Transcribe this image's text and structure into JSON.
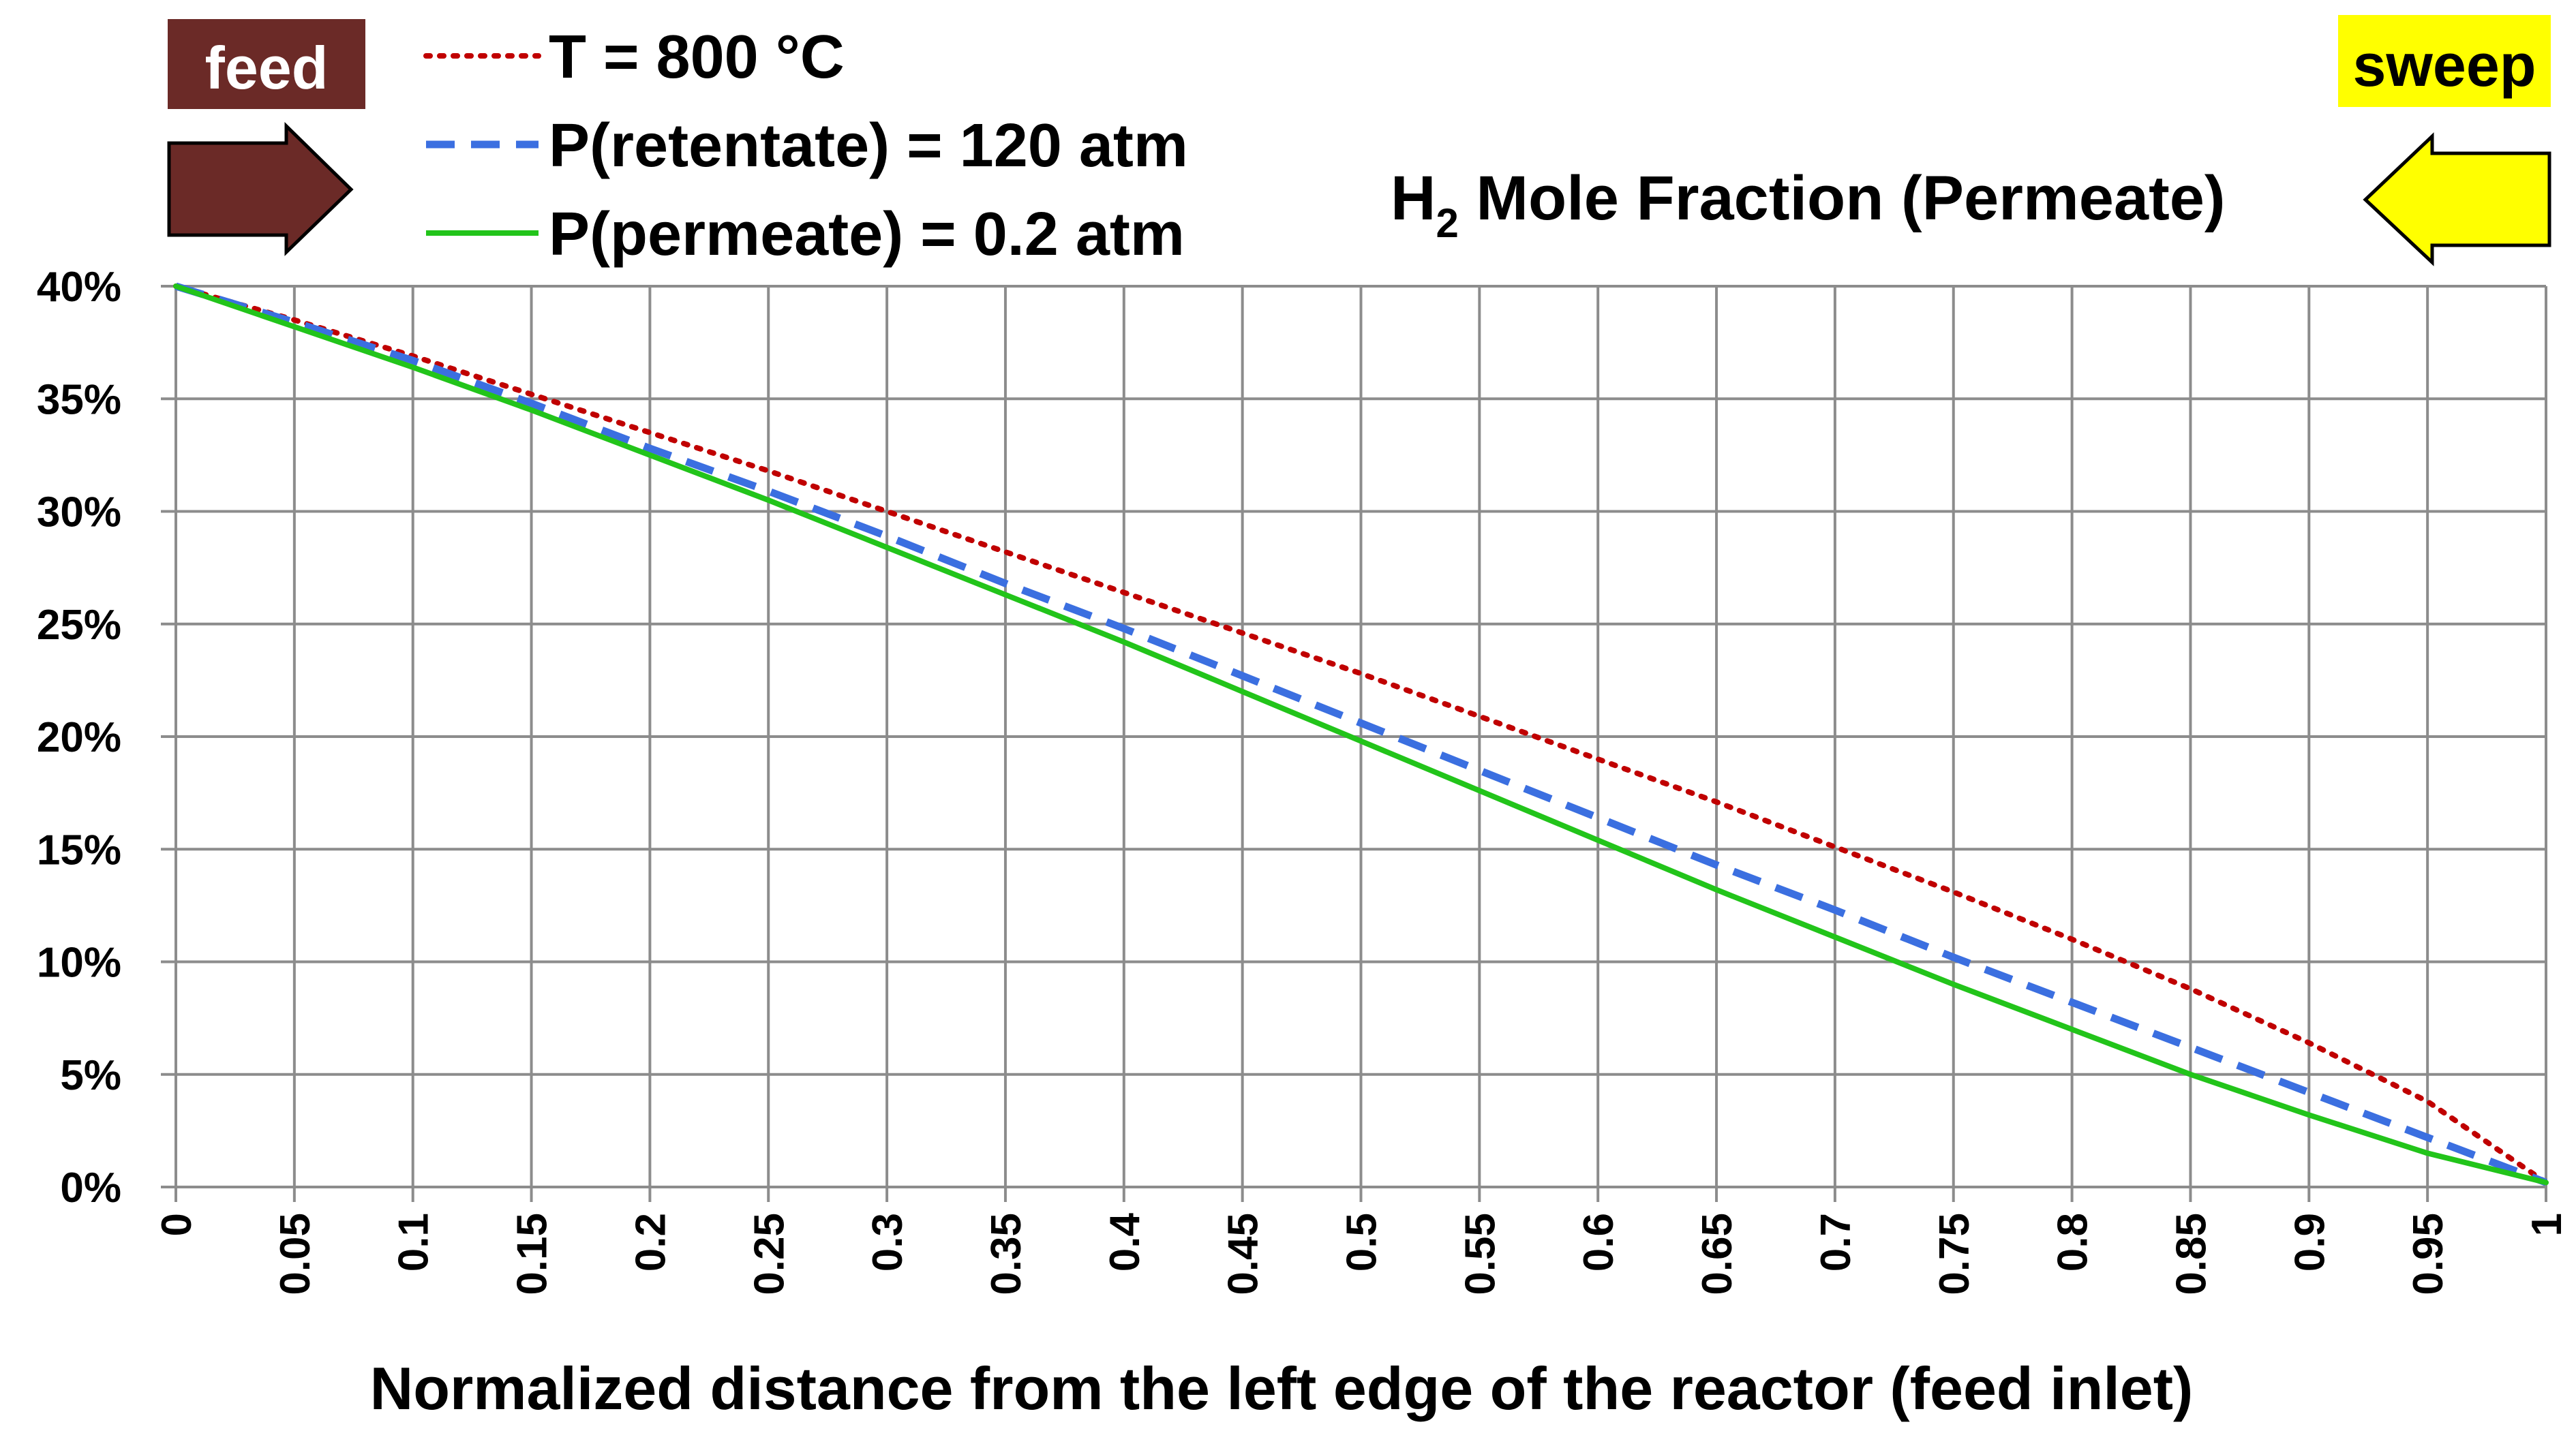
{
  "chart_data": {
    "type": "line",
    "title": "H",
    "title_subscript": "2",
    "title_rest": " Mole Fraction (Permeate)",
    "xlabel": "Normalized distance from the left edge of the reactor (feed inlet)",
    "ylabel": "",
    "xlim": [
      0,
      1
    ],
    "ylim": [
      0,
      0.4
    ],
    "grid": true,
    "legend_position": "top-left",
    "x_ticks": [
      "0",
      "0.05",
      "0.1",
      "0.15",
      "0.2",
      "0.25",
      "0.3",
      "0.35",
      "0.4",
      "0.45",
      "0.5",
      "0.55",
      "0.6",
      "0.65",
      "0.7",
      "0.75",
      "0.8",
      "0.85",
      "0.9",
      "0.95",
      "1"
    ],
    "y_ticks": [
      "0%",
      "5%",
      "10%",
      "15%",
      "20%",
      "25%",
      "30%",
      "35%",
      "40%"
    ],
    "x": [
      0,
      0.05,
      0.1,
      0.15,
      0.2,
      0.25,
      0.3,
      0.35,
      0.4,
      0.45,
      0.5,
      0.55,
      0.6,
      0.65,
      0.7,
      0.75,
      0.8,
      0.85,
      0.9,
      0.95,
      1
    ],
    "series": [
      {
        "name": "T = 800 °C",
        "style": "dotted",
        "color": "#c00000",
        "values": [
          0.4,
          0.385,
          0.369,
          0.352,
          0.335,
          0.318,
          0.3,
          0.282,
          0.264,
          0.246,
          0.228,
          0.209,
          0.19,
          0.171,
          0.151,
          0.131,
          0.11,
          0.088,
          0.064,
          0.038,
          0.002
        ]
      },
      {
        "name": "P(retentate) = 120 atm",
        "style": "dashed",
        "color": "#3b6fe0",
        "values": [
          0.4,
          0.384,
          0.367,
          0.348,
          0.328,
          0.309,
          0.289,
          0.268,
          0.248,
          0.227,
          0.206,
          0.185,
          0.164,
          0.143,
          0.123,
          0.102,
          0.082,
          0.062,
          0.042,
          0.022,
          0.002
        ]
      },
      {
        "name": "P(permeate) = 0.2 atm",
        "style": "solid",
        "color": "#22c41a",
        "values": [
          0.4,
          0.382,
          0.364,
          0.345,
          0.325,
          0.305,
          0.284,
          0.263,
          0.242,
          0.22,
          0.198,
          0.176,
          0.154,
          0.132,
          0.111,
          0.09,
          0.07,
          0.05,
          0.032,
          0.015,
          0.002
        ]
      }
    ]
  },
  "badges": {
    "feed_label": "feed",
    "sweep_label": "sweep",
    "feed_color": "#6b2a27",
    "sweep_color": "#ffff00"
  }
}
